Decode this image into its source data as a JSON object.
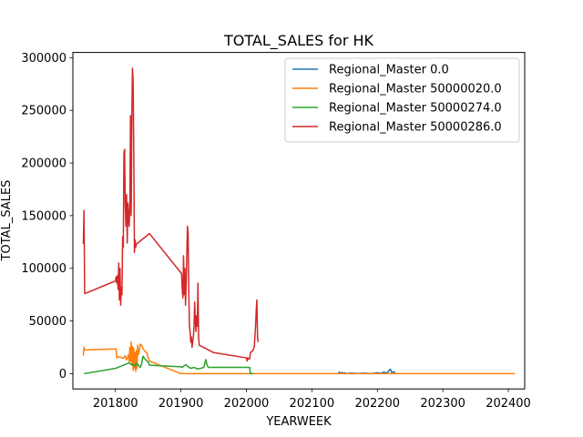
{
  "chart_data": {
    "type": "line",
    "title": "TOTAL_SALES for HK",
    "xlabel": "YEARWEEK",
    "ylabel": "TOTAL_SALES",
    "xlim": [
      201735,
      202425
    ],
    "ylim": [
      -14500,
      305000
    ],
    "xticks": [
      201800,
      201900,
      202000,
      202100,
      202200,
      202300,
      202400
    ],
    "yticks": [
      0,
      50000,
      100000,
      150000,
      200000,
      250000,
      300000
    ],
    "legend_position": "upper-right",
    "grid": false,
    "series": [
      {
        "name": "Regional_Master 0.0",
        "color": "#1f77b4",
        "points": [
          [
            202140,
            0
          ],
          [
            202142,
            1500
          ],
          [
            202144,
            500
          ],
          [
            202146,
            1200
          ],
          [
            202148,
            300
          ],
          [
            202150,
            800
          ],
          [
            202152,
            0
          ],
          [
            202160,
            600
          ],
          [
            202170,
            200
          ],
          [
            202180,
            500
          ],
          [
            202190,
            0
          ],
          [
            202200,
            800
          ],
          [
            202205,
            300
          ],
          [
            202210,
            1500
          ],
          [
            202215,
            600
          ],
          [
            202218,
            3200
          ],
          [
            202220,
            4200
          ],
          [
            202222,
            1000
          ],
          [
            202225,
            2000
          ],
          [
            202228,
            0
          ]
        ]
      },
      {
        "name": "Regional_Master 50000020.0",
        "color": "#ff7f0e",
        "points": [
          [
            201751,
            17000
          ],
          [
            201752,
            25000
          ],
          [
            201753,
            22500
          ],
          [
            201801,
            23500
          ],
          [
            201802,
            15000
          ],
          [
            201805,
            16000
          ],
          [
            201810,
            15000
          ],
          [
            201812,
            14500
          ],
          [
            201815,
            17000
          ],
          [
            201817,
            13000
          ],
          [
            201820,
            18000
          ],
          [
            201821,
            11000
          ],
          [
            201822,
            25000
          ],
          [
            201823,
            12000
          ],
          [
            201824,
            30000
          ],
          [
            201825,
            8000
          ],
          [
            201826,
            26000
          ],
          [
            201827,
            3000
          ],
          [
            201828,
            24000
          ],
          [
            201829,
            5000
          ],
          [
            201830,
            20000
          ],
          [
            201831,
            2000
          ],
          [
            201832,
            22000
          ],
          [
            201833,
            5000
          ],
          [
            201834,
            27000
          ],
          [
            201835,
            18000
          ],
          [
            201836,
            20000
          ],
          [
            201838,
            28000
          ],
          [
            201840,
            27000
          ],
          [
            201842,
            24000
          ],
          [
            201845,
            21000
          ],
          [
            201848,
            20000
          ],
          [
            201850,
            15000
          ],
          [
            201852,
            12000
          ],
          [
            201900,
            0
          ],
          [
            202000,
            0
          ],
          [
            202100,
            0
          ],
          [
            202200,
            0
          ],
          [
            202300,
            0
          ],
          [
            202410,
            0
          ]
        ]
      },
      {
        "name": "Regional_Master 50000274.0",
        "color": "#2ca02c",
        "points": [
          [
            201752,
            0
          ],
          [
            201800,
            5000
          ],
          [
            201820,
            10000
          ],
          [
            201830,
            7500
          ],
          [
            201832,
            10000
          ],
          [
            201835,
            8000
          ],
          [
            201838,
            6000
          ],
          [
            201840,
            9500
          ],
          [
            201842,
            16500
          ],
          [
            201845,
            14000
          ],
          [
            201850,
            11000
          ],
          [
            201852,
            8000
          ],
          [
            201900,
            6500
          ],
          [
            201902,
            6000
          ],
          [
            201905,
            7500
          ],
          [
            201908,
            8500
          ],
          [
            201910,
            7000
          ],
          [
            201915,
            5000
          ],
          [
            201920,
            6000
          ],
          [
            201925,
            4500
          ],
          [
            201930,
            5000
          ],
          [
            201935,
            6000
          ],
          [
            201938,
            13500
          ],
          [
            201940,
            8000
          ],
          [
            201942,
            6000
          ],
          [
            201950,
            6000
          ],
          [
            202000,
            6000
          ],
          [
            202005,
            6000
          ],
          [
            202006,
            0
          ],
          [
            202010,
            0
          ]
        ]
      },
      {
        "name": "Regional_Master 50000286.0",
        "color": "#d62728",
        "points": [
          [
            201751,
            123000
          ],
          [
            201752,
            155000
          ],
          [
            201753,
            76000
          ],
          [
            201800,
            88000
          ],
          [
            201801,
            92000
          ],
          [
            201802,
            86000
          ],
          [
            201803,
            93000
          ],
          [
            201804,
            80000
          ],
          [
            201805,
            105000
          ],
          [
            201806,
            70000
          ],
          [
            201807,
            100000
          ],
          [
            201808,
            65000
          ],
          [
            201809,
            82000
          ],
          [
            201810,
            75000
          ],
          [
            201811,
            130000
          ],
          [
            201812,
            120000
          ],
          [
            201813,
            210000
          ],
          [
            201814,
            213000
          ],
          [
            201815,
            160000
          ],
          [
            201816,
            140000
          ],
          [
            201817,
            170000
          ],
          [
            201818,
            124000
          ],
          [
            201819,
            162000
          ],
          [
            201820,
            150000
          ],
          [
            201821,
            140000
          ],
          [
            201822,
            160000
          ],
          [
            201823,
            245000
          ],
          [
            201824,
            150000
          ],
          [
            201825,
            240000
          ],
          [
            201826,
            290000
          ],
          [
            201827,
            280000
          ],
          [
            201828,
            210000
          ],
          [
            201829,
            115000
          ],
          [
            201830,
            127000
          ],
          [
            201831,
            120000
          ],
          [
            201832,
            123000
          ],
          [
            201852,
            133000
          ],
          [
            201901,
            95000
          ],
          [
            201902,
            80000
          ],
          [
            201903,
            72000
          ],
          [
            201904,
            112000
          ],
          [
            201905,
            75000
          ],
          [
            201906,
            100000
          ],
          [
            201907,
            65000
          ],
          [
            201908,
            85000
          ],
          [
            201910,
            140000
          ],
          [
            201911,
            133000
          ],
          [
            201912,
            80000
          ],
          [
            201913,
            45000
          ],
          [
            201914,
            40000
          ],
          [
            201915,
            30000
          ],
          [
            201916,
            35000
          ],
          [
            201917,
            25000
          ],
          [
            201918,
            30000
          ],
          [
            201919,
            35000
          ],
          [
            201920,
            45000
          ],
          [
            201921,
            68000
          ],
          [
            201922,
            50000
          ],
          [
            201923,
            40000
          ],
          [
            201924,
            55000
          ],
          [
            201925,
            45000
          ],
          [
            201926,
            86000
          ],
          [
            201927,
            35000
          ],
          [
            201928,
            27000
          ],
          [
            201950,
            20000
          ],
          [
            202000,
            15000
          ],
          [
            202001,
            12000
          ],
          [
            202002,
            15000
          ],
          [
            202003,
            14000
          ],
          [
            202005,
            14000
          ],
          [
            202006,
            20000
          ],
          [
            202010,
            22000
          ],
          [
            202012,
            25000
          ],
          [
            202014,
            45000
          ],
          [
            202015,
            60000
          ],
          [
            202016,
            70000
          ],
          [
            202017,
            35000
          ],
          [
            202018,
            30000
          ]
        ]
      }
    ]
  }
}
